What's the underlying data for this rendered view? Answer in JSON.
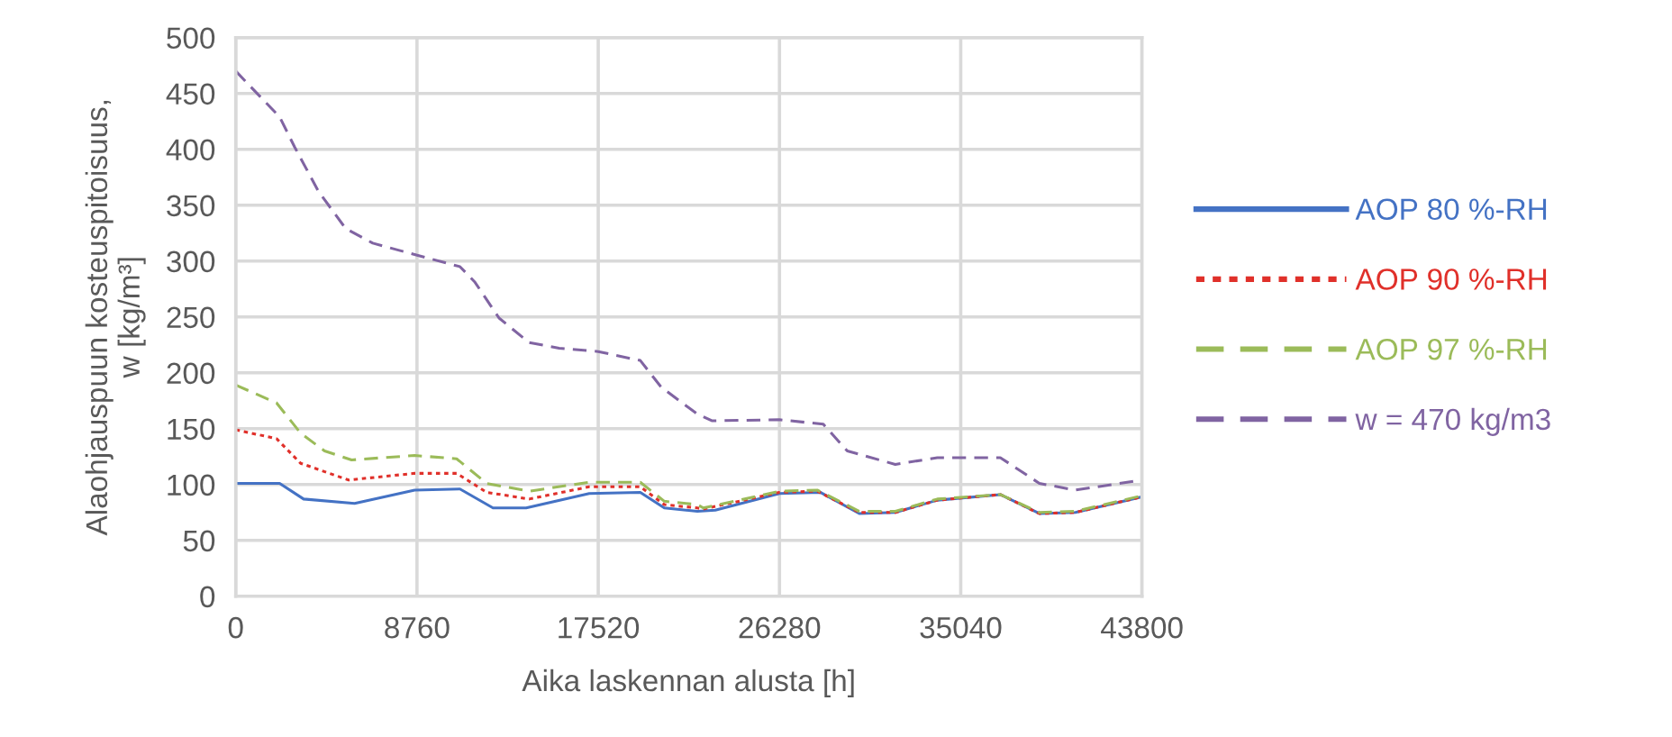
{
  "chart_data": {
    "type": "line",
    "xlabel": "Aika laskennan alusta [h]",
    "ylabel": "Alaohjauspuun kosteuspitoisuus,\nw [kg/m³]",
    "xlim": [
      0,
      43800
    ],
    "xticks": [
      0,
      8760,
      17520,
      26280,
      35040,
      43800
    ],
    "ylim": [
      0,
      500
    ],
    "yticks": [
      0,
      50,
      100,
      150,
      200,
      250,
      300,
      350,
      400,
      450,
      500
    ],
    "grid": true,
    "legend": "right",
    "marker": "none",
    "series": [
      {
        "name": "AOP 80 %-RH",
        "color": "#4472c4",
        "line_style": "solid",
        "x": [
          0,
          2121,
          3280,
          5745,
          8646,
          10837,
          12433,
          14034,
          17085,
          19553,
          20714,
          22313,
          23176,
          26280,
          28252,
          30138,
          31878,
          33909,
          36954,
          38840,
          40580,
          43800
        ],
        "values": [
          101,
          101,
          87,
          83,
          95,
          96,
          79,
          79,
          92,
          93,
          79,
          76,
          77,
          92,
          93,
          74,
          75,
          86,
          91,
          74,
          75,
          89
        ]
      },
      {
        "name": "AOP 90 %-RH",
        "color": "#e0302a",
        "line_style": "dotted",
        "x": [
          0,
          1973,
          3134,
          5455,
          8646,
          10677,
          12128,
          14179,
          17085,
          19553,
          20714,
          22313,
          22596,
          26280,
          28107,
          30138,
          31878,
          33909,
          36954,
          38840,
          40580,
          43800
        ],
        "values": [
          149,
          141,
          119,
          104,
          110,
          110,
          93,
          87,
          98,
          98,
          82,
          79,
          78,
          93,
          94,
          75,
          75,
          86,
          91,
          74,
          75,
          89
        ]
      },
      {
        "name": "AOP 97 %-RH",
        "color": "#9bbb59",
        "line_style": "dashed",
        "x": [
          0,
          1973,
          3134,
          4294,
          5600,
          8646,
          10677,
          12128,
          14179,
          17085,
          19553,
          20714,
          22313,
          22596,
          26280,
          28107,
          30138,
          31878,
          33909,
          36954,
          38840,
          40580,
          43800
        ],
        "values": [
          189,
          173,
          146,
          130,
          122,
          126,
          123,
          101,
          94,
          102,
          102,
          85,
          82,
          79,
          94,
          95,
          76,
          76,
          87,
          91,
          75,
          76,
          90
        ]
      },
      {
        "name": "w = 470 kg/m3",
        "color": "#8064a2",
        "line_style": "dashed",
        "x": [
          0,
          2121,
          2847,
          4010,
          5317,
          6624,
          8803,
          10837,
          11564,
          12726,
          14179,
          15631,
          17520,
          19553,
          20570,
          22313,
          23031,
          26280,
          28397,
          29558,
          31878,
          33909,
          36954,
          37535,
          38840,
          40580,
          43800
        ],
        "values": [
          470,
          429,
          402,
          362,
          329,
          316,
          305,
          295,
          281,
          249,
          227,
          222,
          219,
          211,
          187,
          163,
          157,
          158,
          154,
          130,
          118,
          124,
          124,
          117,
          101,
          95,
          104
        ]
      }
    ]
  }
}
